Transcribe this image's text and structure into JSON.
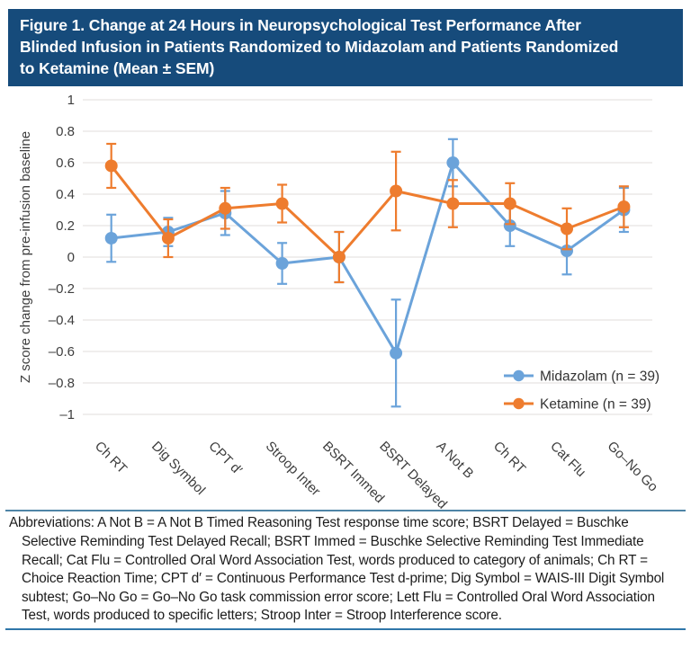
{
  "figure": {
    "title_lines": [
      "Figure 1. Change at 24 Hours in Neuropsychological Test Performance After",
      "Blinded Infusion in Patients Randomized to Midazolam and Patients Randomized",
      "to Ketamine (Mean ± SEM)"
    ]
  },
  "chart_data": {
    "type": "line",
    "title": "Change at 24 Hours in Neuropsychological Test Performance (Mean ± SEM)",
    "categories": [
      "Ch RT",
      "Dig Symbol",
      "CPT d′",
      "Stroop Inter",
      "BSRT Immed",
      "BSRT Delayed",
      "A Not B",
      "Ch RT",
      "Cat Flu",
      "Go–No Go"
    ],
    "series": [
      {
        "name": "Midazolam (n = 39)",
        "key": "midazolam",
        "color": "#6BA3DA",
        "values": [
          0.12,
          0.16,
          0.28,
          -0.04,
          0.0,
          -0.61,
          0.6,
          0.2,
          0.04,
          0.3
        ],
        "sem": [
          0.15,
          0.09,
          0.14,
          0.13,
          0.16,
          0.34,
          0.15,
          0.13,
          0.15,
          0.14
        ]
      },
      {
        "name": "Ketamine (n = 39)",
        "key": "ketamine",
        "color": "#EE7C2E",
        "values": [
          0.58,
          0.12,
          0.31,
          0.34,
          0.0,
          0.42,
          0.34,
          0.34,
          0.18,
          0.32
        ],
        "sem": [
          0.14,
          0.12,
          0.13,
          0.12,
          0.16,
          0.25,
          0.15,
          0.13,
          0.13,
          0.13
        ]
      }
    ],
    "xlabel": "",
    "ylabel": "Z score change from pre-infusion baseline",
    "ylim": [
      -1,
      1
    ],
    "ytick_step": 0.2,
    "ytick_labels": [
      "1",
      "0.8",
      "0.6",
      "0.4",
      "0.2",
      "0",
      "–0.2",
      "–0.4",
      "–0.6",
      "–0.8",
      "–1"
    ],
    "grid": true,
    "error_bars": "SEM",
    "legend_position": "inside-bottom-right"
  },
  "footnote": {
    "text": "Abbreviations: A Not B = A Not B Timed Reasoning Test response time score; BSRT Delayed = Buschke Selective Reminding Test Delayed Recall; BSRT Immed = Buschke Selective Reminding Test Immediate Recall; Cat Flu = Controlled Oral Word Association Test, words produced to category of animals; Ch RT = Choice Reaction Time; CPT d′ = Continuous Performance Test d-prime; Dig Symbol = WAIS-III Digit Symbol subtest; Go–No Go = Go–No Go task commission error score; Lett Flu = Controlled Oral Word Association Test, words produced to specific letters; Stroop Inter = Stroop Interference score."
  },
  "colors": {
    "header_bg": "#164B7B",
    "header_text": "#FFFFFF",
    "rule_top": "#4F85A6",
    "rule_bottom": "#2F76A9",
    "grid": "#E6E4E2",
    "axis_text": "#3E3E3E",
    "legend_text": "#333333"
  }
}
